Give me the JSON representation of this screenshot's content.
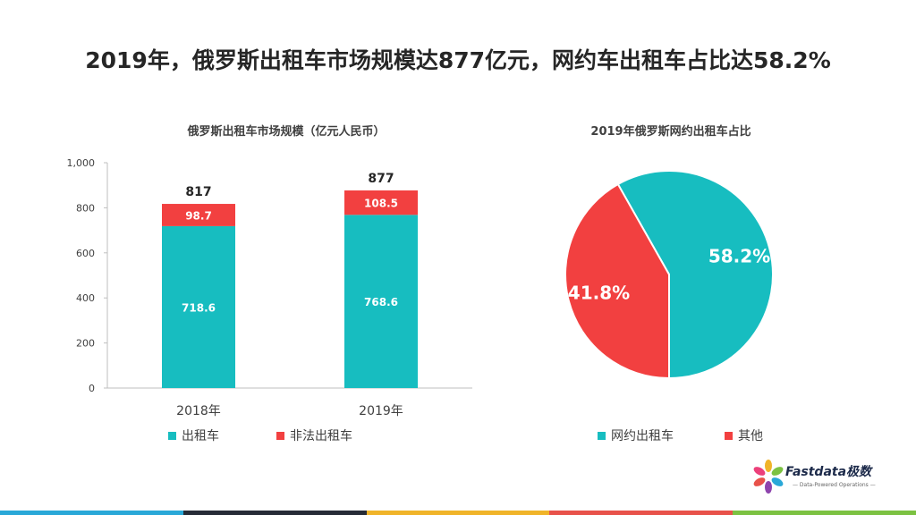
{
  "title": "2019年，俄罗斯出租车市场规模达877亿元，网约车出租车占比达58.2%",
  "colors": {
    "teal": "#17BDC0",
    "red": "#F24040"
  },
  "chart_data": [
    {
      "type": "bar",
      "stacked": true,
      "title": "俄罗斯出租车市场规模（亿元人民币）",
      "categories": [
        "2018年",
        "2019年"
      ],
      "series": [
        {
          "name": "出租车",
          "values": [
            718.6,
            768.6
          ],
          "color": "#17BDC0"
        },
        {
          "name": "非法出租车",
          "values": [
            98.7,
            108.5
          ],
          "color": "#F24040"
        }
      ],
      "totals": [
        817,
        877
      ],
      "yticks": [
        "0",
        "200",
        "400",
        "600",
        "800",
        "1,000"
      ],
      "ylim": [
        0,
        1000
      ],
      "grid": false,
      "legend_position": "bottom"
    },
    {
      "type": "pie",
      "title": "2019年俄罗斯网约出租车占比",
      "slices": [
        {
          "name": "网约出租车",
          "value": 58.2,
          "label": "58.2%",
          "color": "#17BDC0"
        },
        {
          "name": "其他",
          "value": 41.8,
          "label": "41.8%",
          "color": "#F24040"
        }
      ],
      "legend_position": "bottom"
    }
  ],
  "logo": {
    "name": "Fastdata极数",
    "tagline": "— Data-Powered Operations —"
  },
  "bottom_bar_colors": [
    "#29A8D8",
    "#262b36",
    "#F0B429",
    "#E8524A",
    "#7CC242"
  ]
}
